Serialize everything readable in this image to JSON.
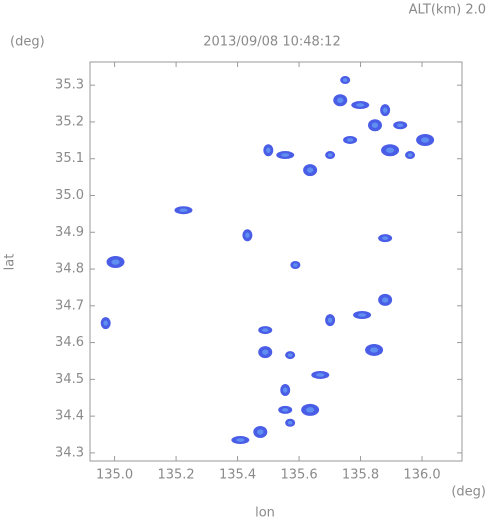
{
  "chart_data": {
    "type": "scatter",
    "title": "2013/09/08 10:48:12",
    "subtitle": "ALT(km) 2.0",
    "y_unit": "(deg)",
    "x_unit": "(deg)",
    "x_label": "lon",
    "y_label": "lat",
    "color": "#4a5de6",
    "x": [
      135.75,
      135.734,
      135.799,
      135.88,
      135.929,
      136.01,
      135.701,
      135.636,
      135.555,
      135.5,
      135.766,
      135.896,
      135.961,
      135.847,
      135.224,
      135.432,
      135.88,
      135.003,
      135.588,
      135.88,
      135.805,
      134.971,
      135.49,
      135.844,
      135.571,
      135.49,
      135.669,
      135.555,
      135.555,
      135.636,
      135.571,
      135.474,
      135.409,
      135.701
    ],
    "values": [
      35.314,
      35.259,
      35.246,
      35.232,
      35.191,
      35.151,
      35.11,
      35.069,
      35.11,
      35.123,
      35.151,
      35.123,
      35.11,
      35.191,
      34.96,
      34.892,
      34.884,
      34.819,
      34.811,
      34.716,
      34.675,
      34.653,
      34.634,
      34.58,
      34.566,
      34.574,
      34.512,
      34.471,
      34.417,
      34.417,
      34.382,
      34.357,
      34.335,
      34.661
    ],
    "xlim": [
      134.92,
      136.13
    ],
    "ylim": [
      34.278,
      35.363
    ],
    "xticks": [
      {
        "value": 135,
        "label": "135.0"
      },
      135.2,
      135.4,
      135.6,
      135.8,
      {
        "value": 136,
        "label": "136.0"
      }
    ],
    "yticks": [
      34.3,
      34.4,
      34.5,
      34.6,
      34.7,
      34.8,
      34.9,
      {
        "value": 35,
        "label": "35.0"
      },
      35.1,
      35.2,
      35.3
    ],
    "grid": false
  }
}
